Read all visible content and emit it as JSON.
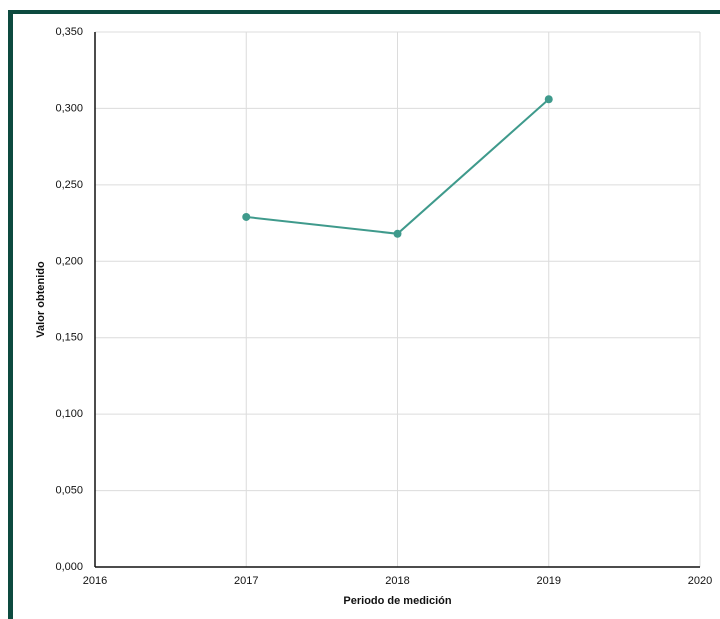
{
  "colors": {
    "frame": "#0d4a3f",
    "line": "#3f9a8c",
    "grid": "#dcdcdc",
    "axis": "#111111"
  },
  "chart_data": {
    "type": "line",
    "xlabel": "Periodo de medición",
    "ylabel": "Valor obtenido",
    "xlim": [
      2016,
      2020
    ],
    "ylim": [
      0,
      0.35
    ],
    "x_ticks": [
      "2016",
      "2017",
      "2018",
      "2019",
      "2020"
    ],
    "y_ticks": [
      "0,000",
      "0,050",
      "0,100",
      "0,150",
      "0,200",
      "0,250",
      "0,300",
      "0,350"
    ],
    "grid": true,
    "series": [
      {
        "x": [
          2017,
          2018,
          2019
        ],
        "values": [
          0.229,
          0.218,
          0.306
        ]
      }
    ]
  }
}
